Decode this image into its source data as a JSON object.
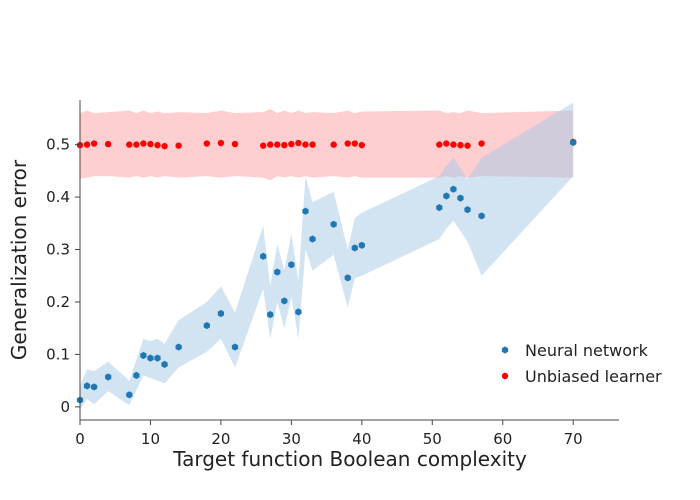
{
  "chart_data": {
    "type": "scatter",
    "title": "",
    "xlabel": "Target function Boolean complexity",
    "ylabel": "Generalization error",
    "xlim": [
      0,
      76.5
    ],
    "ylim": [
      -0.025,
      0.585
    ],
    "xticks": [
      0,
      10,
      20,
      30,
      40,
      50,
      60,
      70
    ],
    "yticks": [
      0,
      0.1,
      0.2,
      0.3,
      0.4,
      0.5
    ],
    "ytick_labels": [
      "0",
      "0.1",
      "0.2",
      "0.3",
      "0.4",
      "0.5"
    ],
    "grid": false,
    "legend_position": "bottom-right",
    "series": [
      {
        "name": "Neural network",
        "color": "#1f77b4",
        "band_color": "#a6c8e6",
        "marker": "hexagon",
        "points": [
          [
            0,
            0.013
          ],
          [
            1,
            0.04
          ],
          [
            2,
            0.038
          ],
          [
            4,
            0.057
          ],
          [
            7,
            0.023
          ],
          [
            8,
            0.06
          ],
          [
            9,
            0.098
          ],
          [
            10,
            0.093
          ],
          [
            11,
            0.093
          ],
          [
            12,
            0.081
          ],
          [
            14,
            0.114
          ],
          [
            18,
            0.155
          ],
          [
            20,
            0.178
          ],
          [
            22,
            0.114
          ],
          [
            26,
            0.287
          ],
          [
            27,
            0.176
          ],
          [
            28,
            0.257
          ],
          [
            29,
            0.202
          ],
          [
            30,
            0.271
          ],
          [
            31,
            0.181
          ],
          [
            32,
            0.373
          ],
          [
            33,
            0.32
          ],
          [
            36,
            0.348
          ],
          [
            38,
            0.246
          ],
          [
            39,
            0.303
          ],
          [
            40,
            0.308
          ],
          [
            51,
            0.38
          ],
          [
            52,
            0.402
          ],
          [
            53,
            0.415
          ],
          [
            54,
            0.398
          ],
          [
            55,
            0.376
          ],
          [
            57,
            0.364
          ],
          [
            70,
            0.504
          ]
        ],
        "band": [
          [
            0,
            -0.005,
            0.04
          ],
          [
            1,
            0.015,
            0.072
          ],
          [
            2,
            0.005,
            0.068
          ],
          [
            4,
            0.03,
            0.086
          ],
          [
            7,
            0.003,
            0.05
          ],
          [
            8,
            0.032,
            0.09
          ],
          [
            9,
            0.06,
            0.13
          ],
          [
            10,
            0.055,
            0.125
          ],
          [
            11,
            0.05,
            0.13
          ],
          [
            12,
            0.045,
            0.12
          ],
          [
            14,
            0.075,
            0.165
          ],
          [
            18,
            0.105,
            0.2
          ],
          [
            20,
            0.13,
            0.23
          ],
          [
            22,
            0.075,
            0.18
          ],
          [
            26,
            0.225,
            0.345
          ],
          [
            27,
            0.13,
            0.23
          ],
          [
            28,
            0.2,
            0.31
          ],
          [
            29,
            0.15,
            0.26
          ],
          [
            30,
            0.21,
            0.33
          ],
          [
            31,
            0.13,
            0.24
          ],
          [
            32,
            0.3,
            0.44
          ],
          [
            33,
            0.26,
            0.39
          ],
          [
            36,
            0.29,
            0.41
          ],
          [
            38,
            0.19,
            0.3
          ],
          [
            39,
            0.245,
            0.36
          ],
          [
            40,
            0.25,
            0.37
          ],
          [
            51,
            0.32,
            0.44
          ],
          [
            52,
            0.34,
            0.46
          ],
          [
            53,
            0.355,
            0.475
          ],
          [
            54,
            0.335,
            0.455
          ],
          [
            55,
            0.315,
            0.435
          ],
          [
            57,
            0.25,
            0.475
          ],
          [
            70,
            0.44,
            0.58
          ]
        ]
      },
      {
        "name": "Unbiased learner",
        "color": "#ff0000",
        "band_color": "#ffb3b8",
        "marker": "circle",
        "points": [
          [
            0,
            0.499
          ],
          [
            1,
            0.5
          ],
          [
            2,
            0.502
          ],
          [
            4,
            0.501
          ],
          [
            7,
            0.5
          ],
          [
            8,
            0.5
          ],
          [
            9,
            0.502
          ],
          [
            10,
            0.501
          ],
          [
            11,
            0.499
          ],
          [
            12,
            0.497
          ],
          [
            14,
            0.498
          ],
          [
            18,
            0.502
          ],
          [
            20,
            0.503
          ],
          [
            22,
            0.501
          ],
          [
            26,
            0.498
          ],
          [
            27,
            0.5
          ],
          [
            28,
            0.5
          ],
          [
            29,
            0.499
          ],
          [
            30,
            0.501
          ],
          [
            31,
            0.503
          ],
          [
            32,
            0.5
          ],
          [
            33,
            0.5
          ],
          [
            36,
            0.5
          ],
          [
            38,
            0.502
          ],
          [
            39,
            0.502
          ],
          [
            40,
            0.499
          ],
          [
            51,
            0.5
          ],
          [
            52,
            0.502
          ],
          [
            53,
            0.5
          ],
          [
            54,
            0.499
          ],
          [
            55,
            0.498
          ],
          [
            57,
            0.502
          ],
          [
            70,
            0.505
          ]
        ],
        "band": [
          [
            0,
            0.435,
            0.56
          ],
          [
            1,
            0.437,
            0.565
          ],
          [
            2,
            0.44,
            0.56
          ],
          [
            4,
            0.44,
            0.562
          ],
          [
            7,
            0.437,
            0.565
          ],
          [
            8,
            0.44,
            0.56
          ],
          [
            9,
            0.437,
            0.565
          ],
          [
            10,
            0.44,
            0.56
          ],
          [
            11,
            0.437,
            0.563
          ],
          [
            12,
            0.44,
            0.56
          ],
          [
            14,
            0.437,
            0.562
          ],
          [
            18,
            0.44,
            0.56
          ],
          [
            20,
            0.437,
            0.565
          ],
          [
            22,
            0.44,
            0.56
          ],
          [
            26,
            0.437,
            0.562
          ],
          [
            27,
            0.432,
            0.568
          ],
          [
            28,
            0.44,
            0.56
          ],
          [
            29,
            0.437,
            0.565
          ],
          [
            30,
            0.44,
            0.56
          ],
          [
            31,
            0.437,
            0.565
          ],
          [
            32,
            0.44,
            0.56
          ],
          [
            33,
            0.437,
            0.562
          ],
          [
            36,
            0.44,
            0.56
          ],
          [
            38,
            0.437,
            0.565
          ],
          [
            39,
            0.44,
            0.56
          ],
          [
            40,
            0.437,
            0.563
          ],
          [
            51,
            0.437,
            0.565
          ],
          [
            52,
            0.44,
            0.56
          ],
          [
            53,
            0.437,
            0.562
          ],
          [
            54,
            0.44,
            0.56
          ],
          [
            55,
            0.437,
            0.565
          ],
          [
            57,
            0.44,
            0.56
          ],
          [
            70,
            0.437,
            0.565
          ]
        ]
      }
    ]
  }
}
